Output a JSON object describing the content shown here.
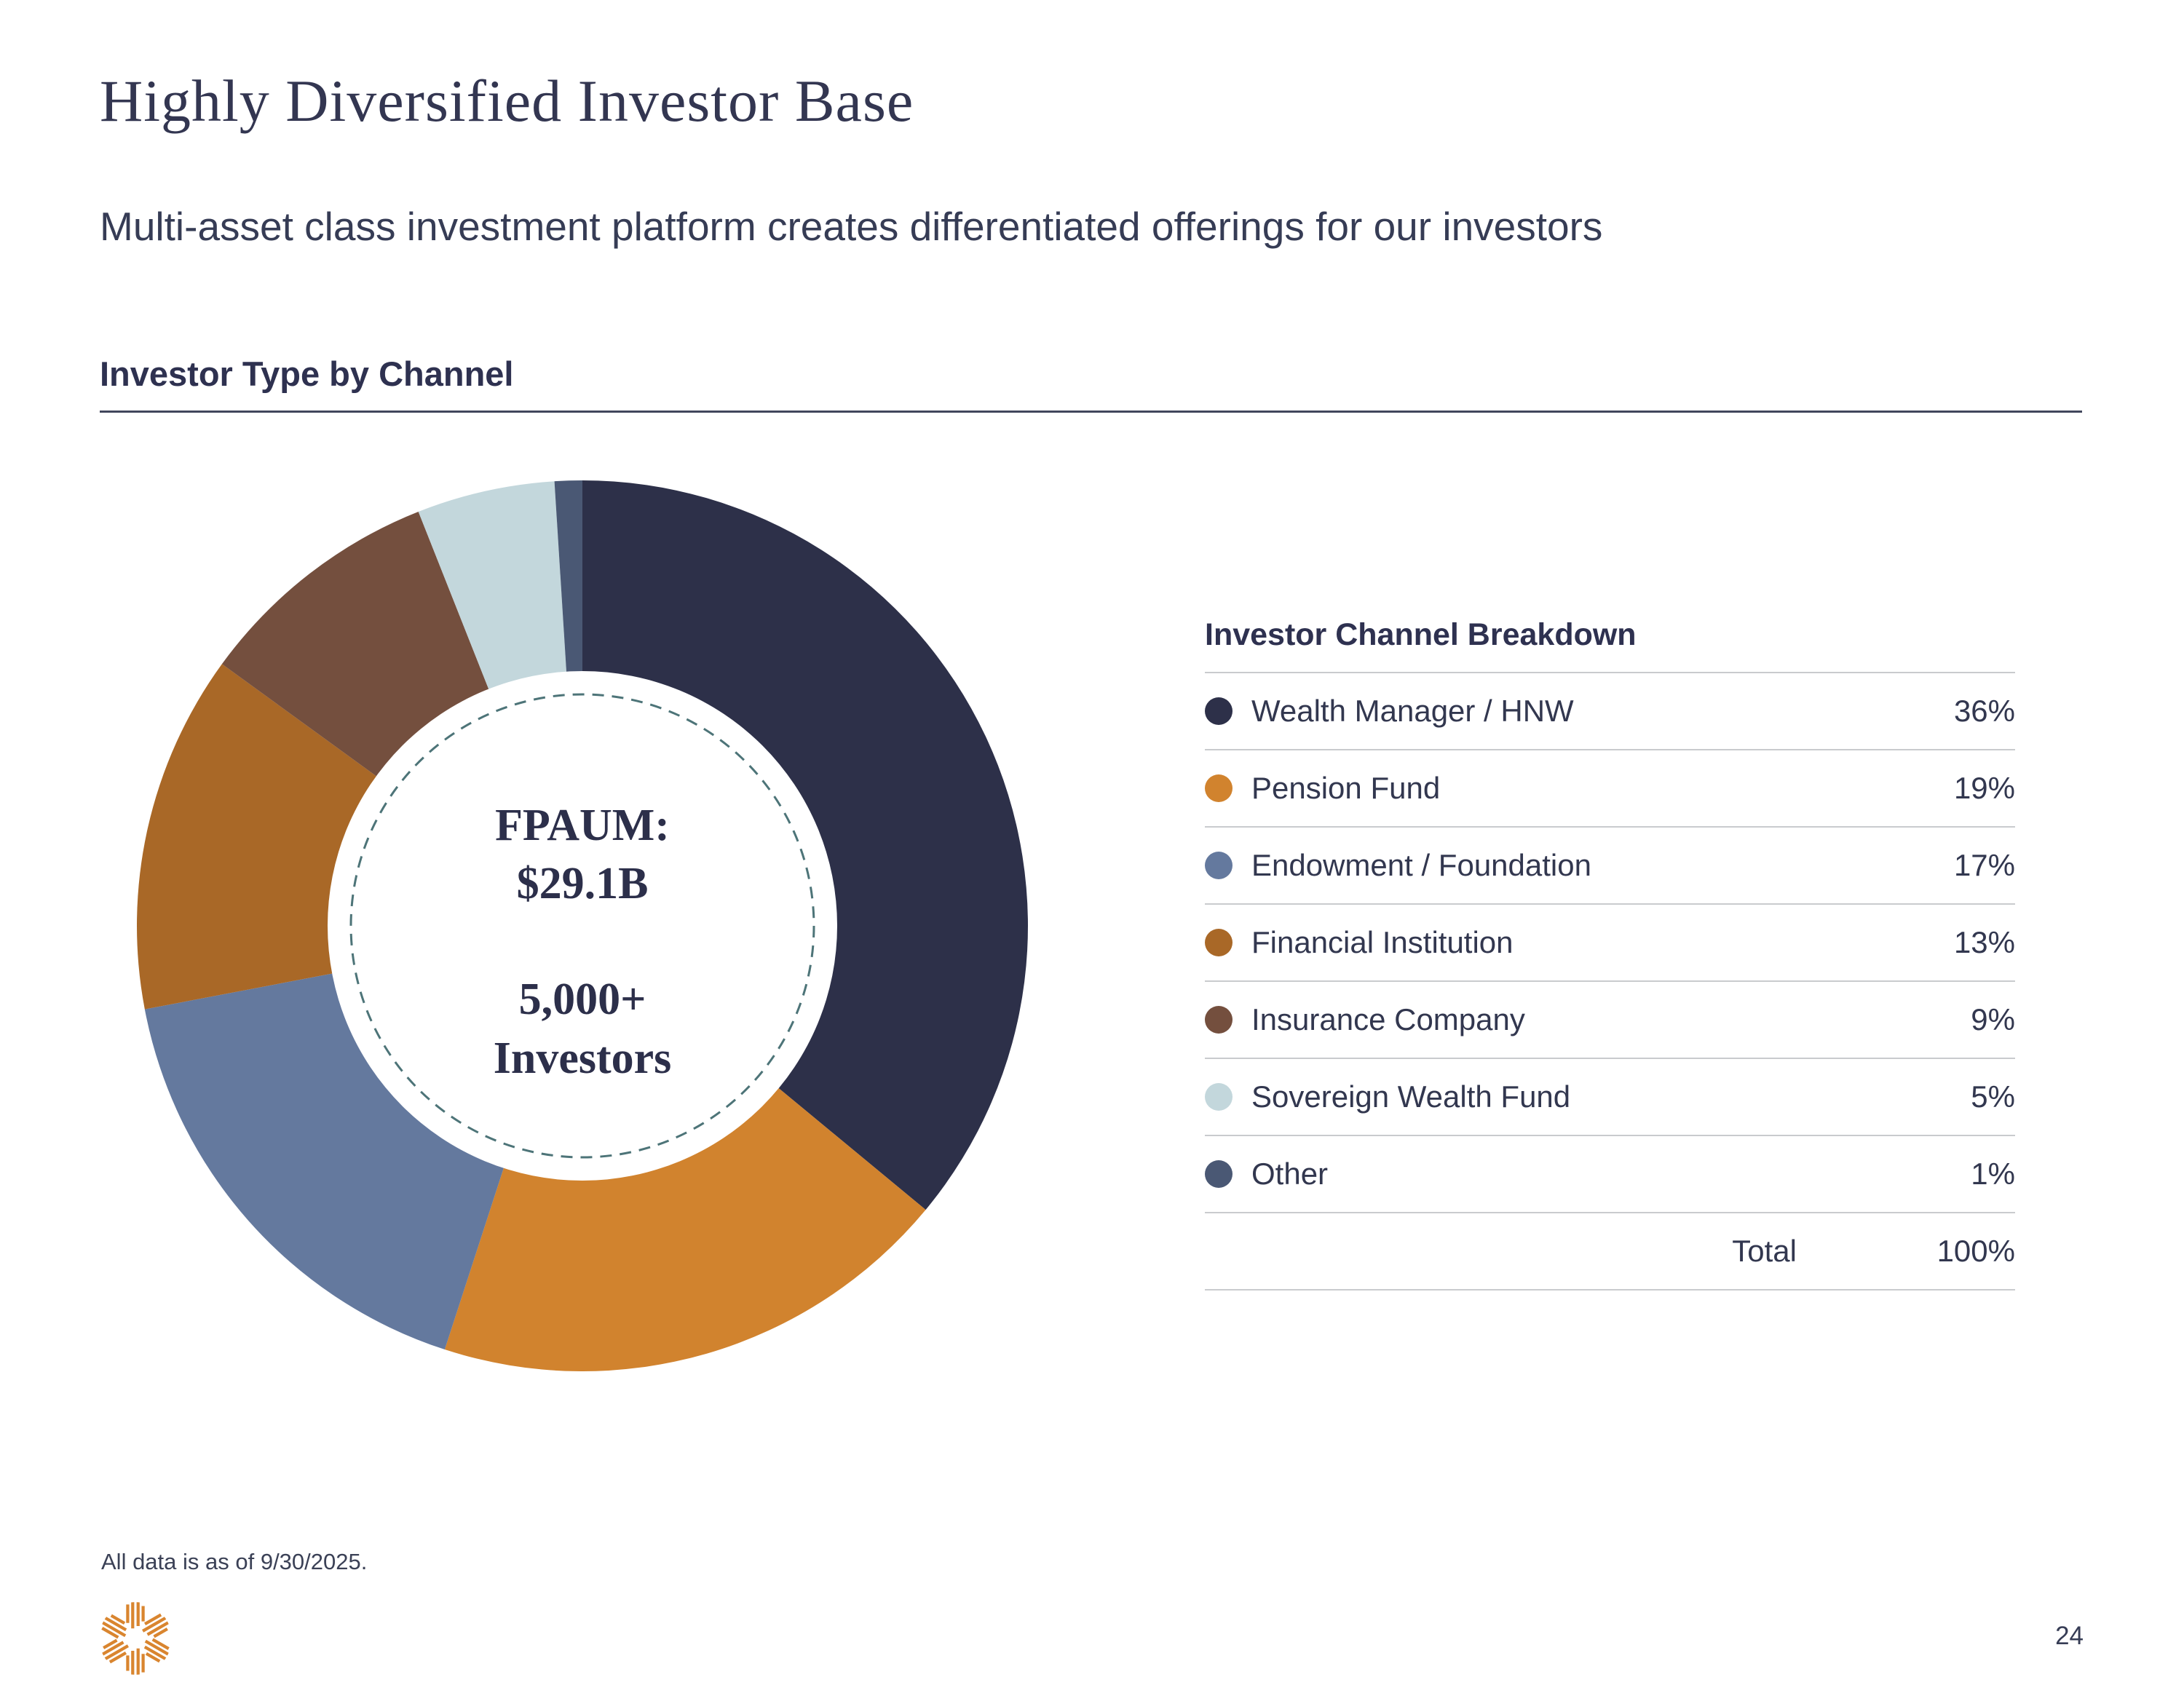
{
  "slide": {
    "title": "Highly Diversified Investor Base",
    "subtitle": "Multi-asset class investment platform creates differentiated offerings for our investors",
    "section_header": "Investor Type by Channel",
    "footnote": "All data is as of 9/30/2025.",
    "page_number": "24"
  },
  "donut_center": {
    "line1": "FPAUM:",
    "line2": "$29.1B",
    "line3": "5,000+",
    "line4": "Investors"
  },
  "chart_data": {
    "type": "pie",
    "donut": true,
    "title": "Investor Type by Channel",
    "start_angle_deg": 0,
    "direction": "clockwise",
    "categories": [
      "Wealth Manager / HNW",
      "Pension Fund",
      "Endowment / Foundation",
      "Financial Institution",
      "Insurance Company",
      "Sovereign Wealth Fund",
      "Other"
    ],
    "values": [
      36,
      19,
      17,
      13,
      9,
      5,
      1
    ],
    "unit": "%",
    "colors": [
      "#2d3049",
      "#d1832e",
      "#64799e",
      "#a96827",
      "#744f3e",
      "#c3d7dc",
      "#4a5874"
    ],
    "center_labels": [
      "FPAUM:",
      "$29.1B",
      "5,000+",
      "Investors"
    ],
    "inner_dashed_ring_color": "#4d7478",
    "legend_position": "right"
  },
  "legend_table": {
    "header": "Investor Channel Breakdown",
    "total_label": "Total",
    "total_value": "100%"
  },
  "logo": {
    "name": "starburst-logo",
    "color": "#d9852f"
  }
}
